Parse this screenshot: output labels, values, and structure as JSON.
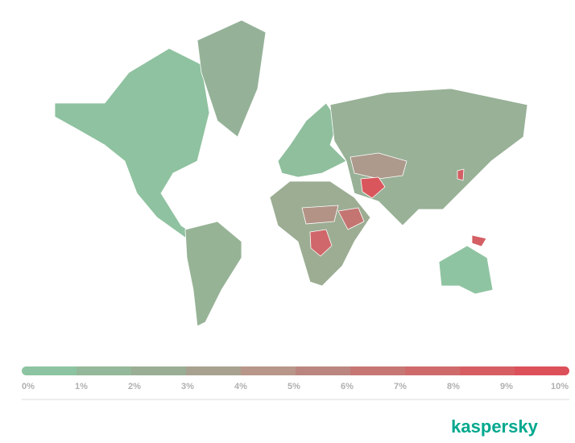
{
  "legend": {
    "ticks": [
      {
        "value": 0,
        "label": "0%"
      },
      {
        "value": 1,
        "label": "1%"
      },
      {
        "value": 2,
        "label": "2%"
      },
      {
        "value": 3,
        "label": "3%"
      },
      {
        "value": 4,
        "label": "4%"
      },
      {
        "value": 5,
        "label": "5%"
      },
      {
        "value": 6,
        "label": "6%"
      },
      {
        "value": 7,
        "label": "7%"
      },
      {
        "value": 8,
        "label": "8%"
      },
      {
        "value": 9,
        "label": "9%"
      },
      {
        "value": 10,
        "label": "10%"
      }
    ],
    "colors": [
      "#8cc4a1",
      "#94b89a",
      "#9aae95",
      "#a8a18f",
      "#b8968a",
      "#bb8680",
      "#c67773",
      "#cf6a6b",
      "#d65e63",
      "#dc505a"
    ]
  },
  "logo": "kaspersky"
}
